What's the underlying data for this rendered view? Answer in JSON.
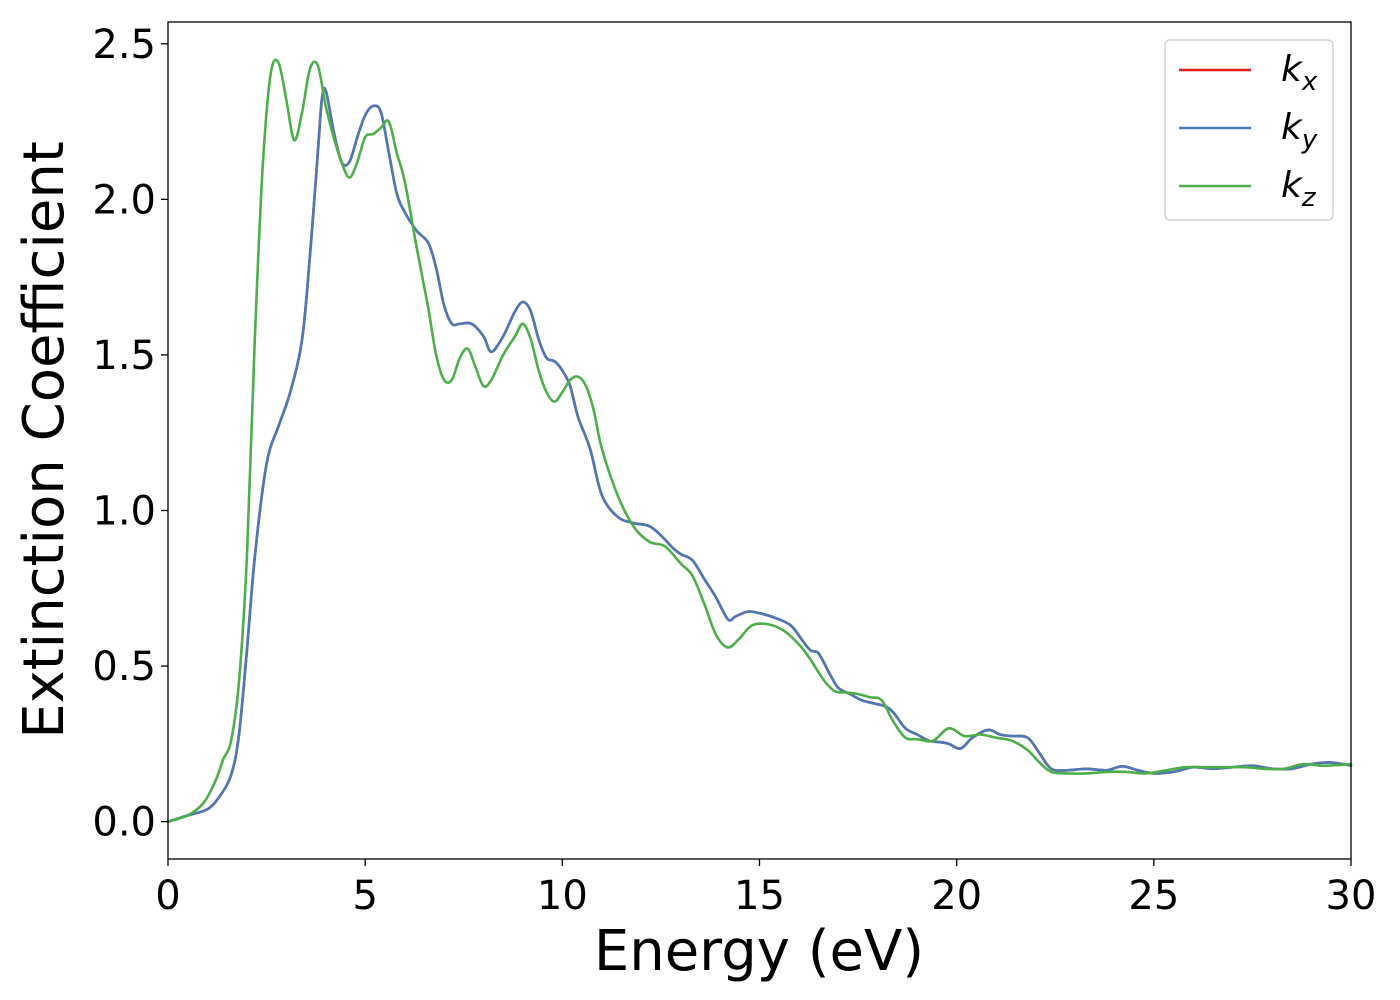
{
  "chart_data": {
    "type": "line",
    "title": "",
    "xlabel": "Energy (eV)",
    "ylabel": "Extinction Coefficient",
    "xlim": [
      0,
      30
    ],
    "ylim": [
      -0.12,
      2.57
    ],
    "xticks": [
      0,
      5,
      10,
      15,
      20,
      25,
      30
    ],
    "xtick_labels": [
      "0",
      "5",
      "10",
      "15",
      "20",
      "25",
      "30"
    ],
    "yticks": [
      0.0,
      0.5,
      1.0,
      1.5,
      2.0,
      2.5
    ],
    "ytick_labels": [
      "0.0",
      "0.5",
      "1.0",
      "1.5",
      "2.0",
      "2.5"
    ],
    "grid": false,
    "legend_position": "top-right",
    "series": [
      {
        "name": "k",
        "subscript": "x",
        "color": "#e41a1c",
        "x": [
          0,
          0.5,
          1,
          1.3,
          1.6,
          1.8,
          2.0,
          2.2,
          2.5,
          2.8,
          3.1,
          3.4,
          3.6,
          3.8,
          3.9,
          4.0,
          4.2,
          4.4,
          4.6,
          4.8,
          5.0,
          5.2,
          5.4,
          5.6,
          5.8,
          6.0,
          6.3,
          6.6,
          6.8,
          7.0,
          7.2,
          7.4,
          7.7,
          8.0,
          8.2,
          8.5,
          8.8,
          9.0,
          9.2,
          9.4,
          9.6,
          9.8,
          10.0,
          10.2,
          10.4,
          10.7,
          11.0,
          11.4,
          11.8,
          12.2,
          12.5,
          12.8,
          13.0,
          13.3,
          13.6,
          13.9,
          14.2,
          14.4,
          14.7,
          15.0,
          15.4,
          15.8,
          16.1,
          16.3,
          16.5,
          16.8,
          17.0,
          17.3,
          17.6,
          17.9,
          18.2,
          18.4,
          18.7,
          19.0,
          19.3,
          19.6,
          19.8,
          20.1,
          20.4,
          20.8,
          21.1,
          21.4,
          21.8,
          22.1,
          22.4,
          22.8,
          23.3,
          23.8,
          24.2,
          24.6,
          25.0,
          25.5,
          26.0,
          26.5,
          27.0,
          27.5,
          28.0,
          28.5,
          29.0,
          29.5,
          30.0
        ],
        "y": [
          0.0,
          0.02,
          0.04,
          0.08,
          0.15,
          0.28,
          0.55,
          0.85,
          1.15,
          1.27,
          1.38,
          1.55,
          1.82,
          2.15,
          2.32,
          2.35,
          2.22,
          2.12,
          2.12,
          2.2,
          2.27,
          2.3,
          2.28,
          2.15,
          2.02,
          1.96,
          1.9,
          1.86,
          1.78,
          1.66,
          1.6,
          1.6,
          1.6,
          1.56,
          1.51,
          1.56,
          1.64,
          1.67,
          1.64,
          1.55,
          1.49,
          1.48,
          1.45,
          1.4,
          1.3,
          1.2,
          1.05,
          0.98,
          0.96,
          0.95,
          0.92,
          0.88,
          0.86,
          0.84,
          0.78,
          0.72,
          0.65,
          0.66,
          0.675,
          0.67,
          0.655,
          0.63,
          0.58,
          0.55,
          0.54,
          0.47,
          0.43,
          0.41,
          0.39,
          0.38,
          0.37,
          0.35,
          0.3,
          0.28,
          0.26,
          0.255,
          0.25,
          0.235,
          0.27,
          0.295,
          0.28,
          0.275,
          0.27,
          0.22,
          0.17,
          0.165,
          0.17,
          0.165,
          0.178,
          0.165,
          0.155,
          0.16,
          0.175,
          0.17,
          0.175,
          0.18,
          0.17,
          0.17,
          0.185,
          0.19,
          0.18
        ]
      },
      {
        "name": "k",
        "subscript": "y",
        "color": "#4a7ab8",
        "x": [
          0,
          0.5,
          1,
          1.3,
          1.6,
          1.8,
          2.0,
          2.2,
          2.5,
          2.8,
          3.1,
          3.4,
          3.6,
          3.8,
          3.9,
          4.0,
          4.2,
          4.4,
          4.6,
          4.8,
          5.0,
          5.2,
          5.4,
          5.6,
          5.8,
          6.0,
          6.3,
          6.6,
          6.8,
          7.0,
          7.2,
          7.4,
          7.7,
          8.0,
          8.2,
          8.5,
          8.8,
          9.0,
          9.2,
          9.4,
          9.6,
          9.8,
          10.0,
          10.2,
          10.4,
          10.7,
          11.0,
          11.4,
          11.8,
          12.2,
          12.5,
          12.8,
          13.0,
          13.3,
          13.6,
          13.9,
          14.2,
          14.4,
          14.7,
          15.0,
          15.4,
          15.8,
          16.1,
          16.3,
          16.5,
          16.8,
          17.0,
          17.3,
          17.6,
          17.9,
          18.2,
          18.4,
          18.7,
          19.0,
          19.3,
          19.6,
          19.8,
          20.1,
          20.4,
          20.8,
          21.1,
          21.4,
          21.8,
          22.1,
          22.4,
          22.8,
          23.3,
          23.8,
          24.2,
          24.6,
          25.0,
          25.5,
          26.0,
          26.5,
          27.0,
          27.5,
          28.0,
          28.5,
          29.0,
          29.5,
          30.0
        ],
        "y": [
          0.0,
          0.02,
          0.04,
          0.08,
          0.15,
          0.28,
          0.55,
          0.85,
          1.15,
          1.27,
          1.38,
          1.55,
          1.82,
          2.15,
          2.32,
          2.35,
          2.22,
          2.12,
          2.12,
          2.2,
          2.27,
          2.3,
          2.28,
          2.15,
          2.02,
          1.96,
          1.9,
          1.86,
          1.78,
          1.66,
          1.6,
          1.6,
          1.6,
          1.56,
          1.51,
          1.56,
          1.64,
          1.67,
          1.64,
          1.55,
          1.49,
          1.48,
          1.45,
          1.4,
          1.3,
          1.2,
          1.05,
          0.98,
          0.96,
          0.95,
          0.92,
          0.88,
          0.86,
          0.84,
          0.78,
          0.72,
          0.65,
          0.66,
          0.675,
          0.67,
          0.655,
          0.63,
          0.58,
          0.55,
          0.54,
          0.47,
          0.43,
          0.41,
          0.39,
          0.38,
          0.37,
          0.35,
          0.3,
          0.28,
          0.26,
          0.255,
          0.25,
          0.235,
          0.27,
          0.295,
          0.28,
          0.275,
          0.27,
          0.22,
          0.17,
          0.165,
          0.17,
          0.165,
          0.178,
          0.165,
          0.155,
          0.16,
          0.175,
          0.17,
          0.175,
          0.18,
          0.17,
          0.17,
          0.185,
          0.19,
          0.18
        ]
      },
      {
        "name": "k",
        "subscript": "z",
        "color": "#4daf4a",
        "x": [
          0,
          0.5,
          0.9,
          1.2,
          1.4,
          1.6,
          1.8,
          2.0,
          2.2,
          2.4,
          2.6,
          2.8,
          3.0,
          3.2,
          3.4,
          3.6,
          3.8,
          4.0,
          4.2,
          4.4,
          4.6,
          4.8,
          5.0,
          5.2,
          5.4,
          5.6,
          5.8,
          6.0,
          6.3,
          6.6,
          6.8,
          7.0,
          7.2,
          7.4,
          7.6,
          7.8,
          8.0,
          8.2,
          8.5,
          8.8,
          9.0,
          9.2,
          9.4,
          9.6,
          9.8,
          10.0,
          10.2,
          10.4,
          10.6,
          10.8,
          11.0,
          11.4,
          11.8,
          12.2,
          12.6,
          13.0,
          13.3,
          13.6,
          13.9,
          14.2,
          14.5,
          14.8,
          15.2,
          15.6,
          16.0,
          16.3,
          16.6,
          16.9,
          17.2,
          17.5,
          17.8,
          18.1,
          18.4,
          18.7,
          19.0,
          19.4,
          19.8,
          20.2,
          20.6,
          21.0,
          21.4,
          21.8,
          22.1,
          22.4,
          22.8,
          23.3,
          23.8,
          24.3,
          24.8,
          25.3,
          25.8,
          26.3,
          26.8,
          27.3,
          27.8,
          28.3,
          28.8,
          29.3,
          30.0
        ],
        "y": [
          0.0,
          0.02,
          0.06,
          0.13,
          0.2,
          0.26,
          0.45,
          0.85,
          1.55,
          2.1,
          2.4,
          2.44,
          2.32,
          2.19,
          2.28,
          2.42,
          2.43,
          2.3,
          2.2,
          2.12,
          2.07,
          2.12,
          2.2,
          2.21,
          2.23,
          2.25,
          2.15,
          2.06,
          1.85,
          1.65,
          1.5,
          1.42,
          1.42,
          1.49,
          1.52,
          1.46,
          1.4,
          1.42,
          1.5,
          1.56,
          1.6,
          1.55,
          1.45,
          1.38,
          1.35,
          1.38,
          1.42,
          1.43,
          1.4,
          1.32,
          1.2,
          1.05,
          0.95,
          0.9,
          0.885,
          0.83,
          0.79,
          0.7,
          0.6,
          0.56,
          0.59,
          0.63,
          0.635,
          0.615,
          0.57,
          0.52,
          0.46,
          0.42,
          0.415,
          0.41,
          0.4,
          0.39,
          0.32,
          0.27,
          0.265,
          0.26,
          0.3,
          0.275,
          0.28,
          0.27,
          0.26,
          0.23,
          0.19,
          0.16,
          0.155,
          0.155,
          0.16,
          0.16,
          0.155,
          0.165,
          0.175,
          0.175,
          0.175,
          0.175,
          0.17,
          0.17,
          0.185,
          0.18,
          0.185
        ]
      }
    ]
  }
}
